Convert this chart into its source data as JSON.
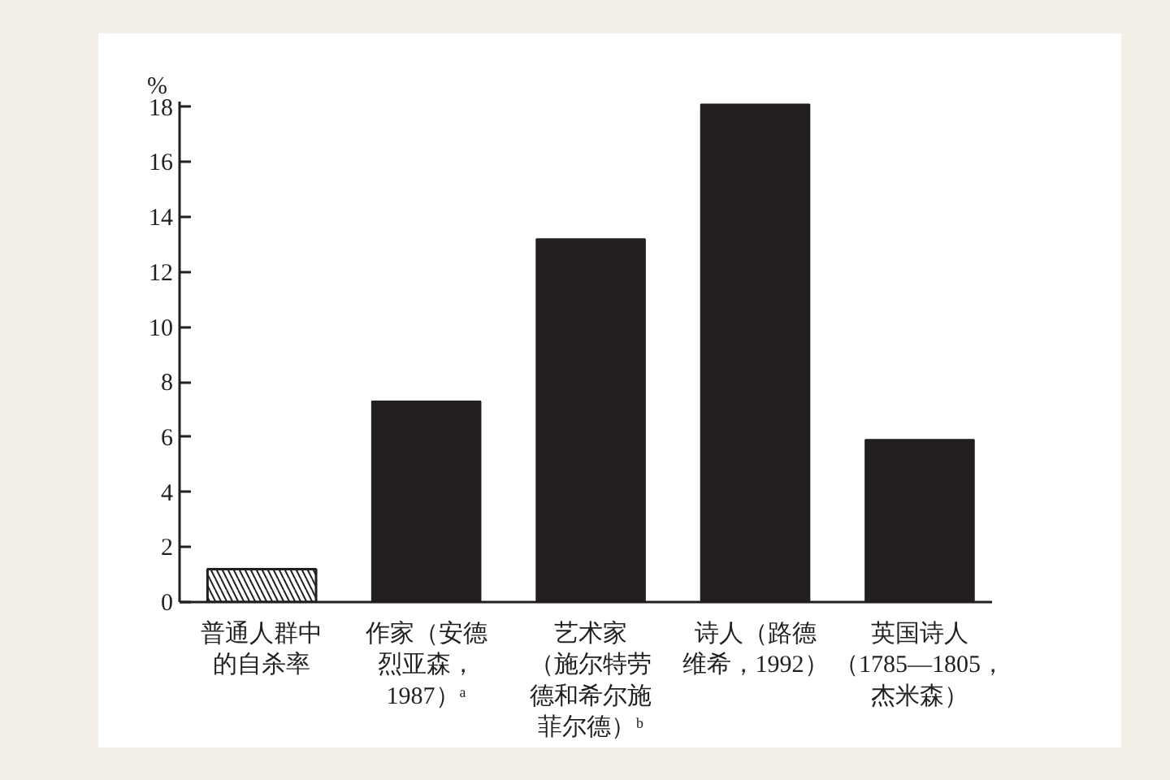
{
  "chart_data": {
    "type": "bar",
    "ylabel": "%",
    "categories": [
      "普通人群中的自杀率",
      "作家（安德烈亚森，1987）ᵃ",
      "艺术家（施尔特劳德和希尔施菲尔德）ᵇ",
      "诗人（路德维希，1992）",
      "英国诗人（1785—1805，杰米森）"
    ],
    "values": [
      1.2,
      7.3,
      13.2,
      18.1,
      5.9
    ],
    "colors": [
      "#ffffff",
      "#231f20",
      "#231f20",
      "#231f20",
      "#231f20"
    ],
    "ylim": [
      0,
      18.2
    ],
    "yticks": [
      0,
      2,
      4,
      6,
      8,
      10,
      12,
      14,
      16,
      18
    ],
    "grid": false
  }
}
